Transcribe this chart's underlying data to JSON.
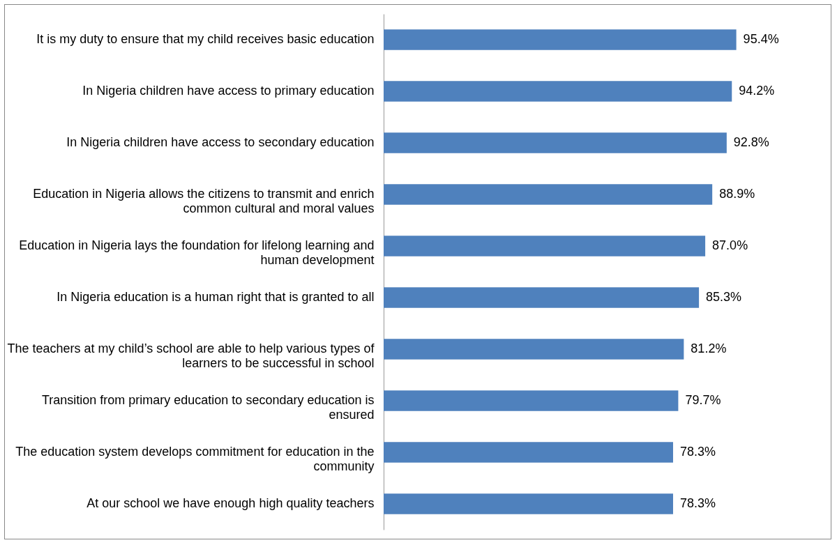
{
  "chart_data": {
    "type": "bar",
    "orientation": "horizontal",
    "color": "#4f81bd",
    "categories": [
      "It is my duty to ensure that my child receives basic education",
      "In Nigeria children have access to primary education",
      "In Nigeria children have access to secondary education",
      "Education in Nigeria allows the citizens to transmit and enrich common cultural and moral values",
      "Education in Nigeria lays the foundation for lifelong learning and human development",
      "In Nigeria education is a human right that is granted to all",
      "The teachers at my child’s school are able to help various types of learners to be successful in school",
      "Transition from primary education to secondary education is ensured",
      "The education system develops commitment for education in the community",
      "At our school we have enough high quality teachers"
    ],
    "values": [
      95.4,
      94.2,
      92.8,
      88.9,
      87.0,
      85.3,
      81.2,
      79.7,
      78.3,
      78.3
    ],
    "value_labels": [
      "95.4%",
      "94.2%",
      "92.8%",
      "88.9%",
      "87.0%",
      "85.3%",
      "81.2%",
      "79.7%",
      "78.3%",
      "78.3%"
    ],
    "grid": false
  }
}
